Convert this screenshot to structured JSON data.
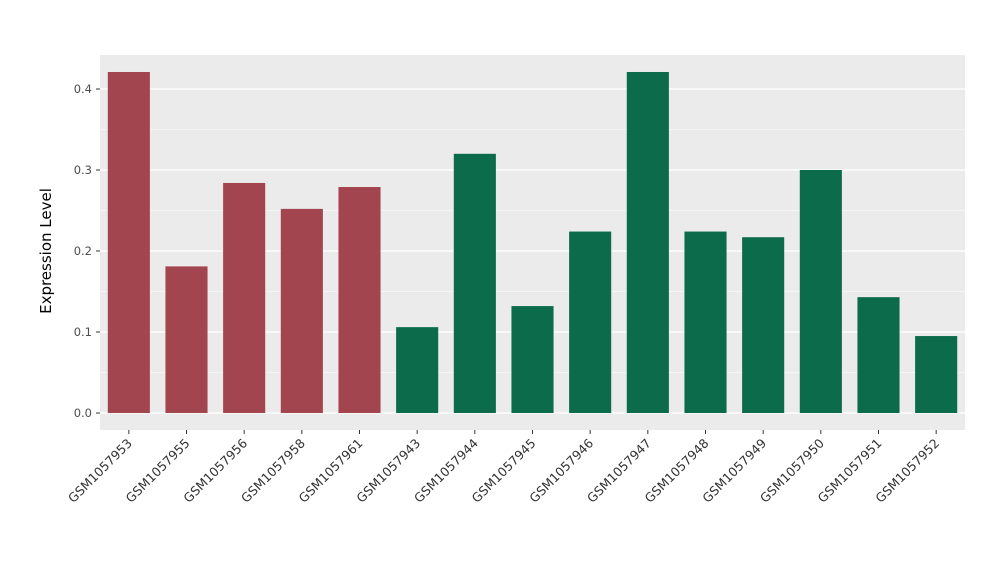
{
  "chart_data": {
    "type": "bar",
    "title": "",
    "xlabel": "",
    "ylabel": "Expression Level",
    "ylim": [
      0,
      0.44
    ],
    "yticks": [
      "0.0",
      "0.1",
      "0.2",
      "0.3",
      "0.4"
    ],
    "ytick_values": [
      0.0,
      0.1,
      0.2,
      0.3,
      0.4
    ],
    "minor_tick_step": 0.05,
    "grid": "on",
    "legend_position": "none",
    "categories": [
      "GSM1057953",
      "GSM1057955",
      "GSM1057956",
      "GSM1057958",
      "GSM1057961",
      "GSM1057943",
      "GSM1057944",
      "GSM1057945",
      "GSM1057946",
      "GSM1057947",
      "GSM1057948",
      "GSM1057949",
      "GSM1057950",
      "GSM1057951",
      "GSM1057952"
    ],
    "values": [
      0.421,
      0.181,
      0.284,
      0.252,
      0.279,
      0.106,
      0.32,
      0.132,
      0.224,
      0.421,
      0.224,
      0.217,
      0.3,
      0.143,
      0.095
    ],
    "bar_colors": [
      "#A3454F",
      "#A3454F",
      "#A3454F",
      "#A3454F",
      "#A3454F",
      "#0B6B4B",
      "#0B6B4B",
      "#0B6B4B",
      "#0B6B4B",
      "#0B6B4B",
      "#0B6B4B",
      "#0B6B4B",
      "#0B6B4B",
      "#0B6B4B",
      "#0B6B4B"
    ],
    "group_colors": {
      "first_group": "#A3454F",
      "second_group": "#0B6B4B"
    },
    "panel_background": "#EBEBEB",
    "grid_color": "#FFFFFF",
    "axis_text_color": "#4D4D4D",
    "x_text_color": "#333333",
    "tick_mark_color": "#333333"
  }
}
